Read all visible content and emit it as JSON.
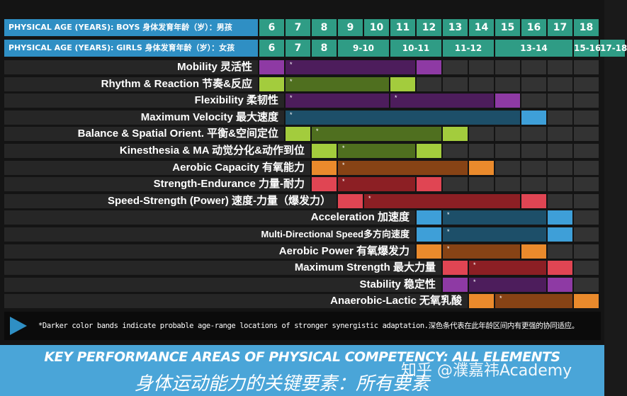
{
  "header": {
    "boys_label": "PHYSICAL AGE (YEARS): BOYS 身体发育年龄（岁）：男孩",
    "girls_label": "PHYSICAL AGE (YEARS): GIRLS 身体发育年龄（岁）：女孩",
    "boys_ages": [
      "6",
      "7",
      "8",
      "9",
      "10",
      "11",
      "12",
      "13",
      "14",
      "15",
      "16",
      "17",
      "18"
    ],
    "girls_ages": [
      {
        "label": "6",
        "span": 1
      },
      {
        "label": "7",
        "span": 1
      },
      {
        "label": "8",
        "span": 1
      },
      {
        "label": "9-10",
        "span": 2
      },
      {
        "label": "10-11",
        "span": 2
      },
      {
        "label": "11-12",
        "span": 2
      },
      {
        "label": "13-14",
        "span": 3
      },
      {
        "label": "15-16",
        "span": 1
      },
      {
        "label": "17-18",
        "span": 1
      }
    ]
  },
  "colors": {
    "purple": {
      "light": "#8e3aa4",
      "dark": "#4d1d5c"
    },
    "green": {
      "light": "#a3cc3d",
      "dark": "#4f6f1f"
    },
    "blue": {
      "light": "#3e9fd8",
      "dark": "#1d4f69"
    },
    "orange": {
      "light": "#ea8a2c",
      "dark": "#874315"
    },
    "red": {
      "light": "#e04553",
      "dark": "#8c1f24"
    }
  },
  "rows": [
    {
      "label": "Mobility 灵活性",
      "color": "purple",
      "start": 0,
      "lightL": 1,
      "dark": 5,
      "lightR": 1
    },
    {
      "label": "Rhythm & Reaction 节奏&反应",
      "color": "green",
      "start": 0,
      "lightL": 1,
      "dark": 4,
      "lightR": 1
    },
    {
      "label": "Flexibility 柔韧性",
      "color": "purple",
      "start": 1,
      "lightL": 0,
      "dark": 4,
      "dark2": 4,
      "lightR": 1
    },
    {
      "label": "Maximum Velocity 最大速度",
      "color": "blue",
      "start": 1,
      "lightL": 0,
      "dark": 9,
      "lightR": 1
    },
    {
      "label": "Balance & Spatial Orient. 平衡&空间定位",
      "color": "green",
      "start": 1,
      "lightL": 1,
      "dark": 5,
      "lightR": 1
    },
    {
      "label": "Kinesthesia & MA 动觉分化&动作到位",
      "color": "green",
      "start": 2,
      "lightL": 1,
      "dark": 3,
      "lightR": 1
    },
    {
      "label": "Aerobic Capacity 有氧能力",
      "color": "orange",
      "start": 2,
      "lightL": 1,
      "dark": 5,
      "lightR": 1
    },
    {
      "label": "Strength-Endurance 力量-耐力",
      "color": "red",
      "start": 2,
      "lightL": 1,
      "dark": 3,
      "lightR": 1
    },
    {
      "label": "Speed-Strength (Power) 速度-力量（爆发力）",
      "color": "red",
      "start": 3,
      "lightL": 1,
      "dark": 6,
      "lightR": 1
    },
    {
      "label": "Acceleration 加速度",
      "color": "blue",
      "start": 6,
      "lightL": 1,
      "dark": 4,
      "lightR": 1
    },
    {
      "label": "Multi-Directional Speed多方向速度",
      "color": "blue",
      "start": 6,
      "lightL": 1,
      "dark": 4,
      "lightR": 1,
      "small": true
    },
    {
      "label": "Aerobic Power 有氧爆发力",
      "color": "orange",
      "start": 6,
      "lightL": 1,
      "dark": 3,
      "lightR": 1
    },
    {
      "label": "Maximum Strength 最大力量",
      "color": "red",
      "start": 7,
      "lightL": 1,
      "dark": 3,
      "lightR": 1
    },
    {
      "label": "Stability 稳定性",
      "color": "purple",
      "start": 7,
      "lightL": 1,
      "dark": 3,
      "lightR": 1
    },
    {
      "label": "Anaerobic-Lactic 无氧乳酸",
      "color": "orange",
      "start": 8,
      "lightL": 1,
      "dark": 3,
      "lightR": 1
    }
  ],
  "band_marker": "*",
  "footnote": "*Darker color bands indicate probable age-range locations of stronger synergistic adaptation.深色条代表在此年龄区间内有更强的协同适应。",
  "title_en": "KEY PERFORMANCE AREAS OF PHYSICAL COMPETENCY: ALL ELEMENTS",
  "title_cn": "身体运动能力的关键要素：所有要素",
  "watermark": "知乎 @濮嘉祎Academy"
}
